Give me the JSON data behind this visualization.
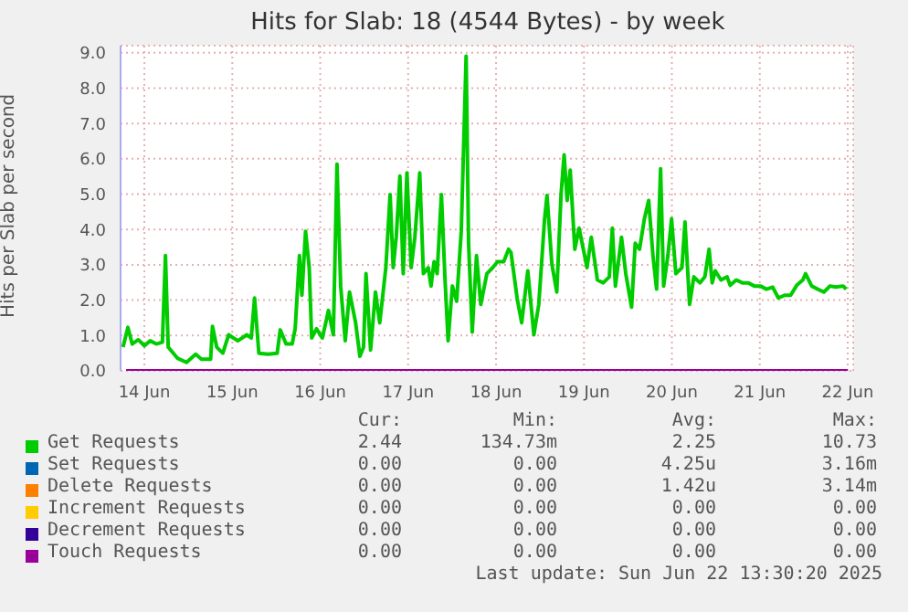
{
  "chart_data": {
    "type": "line",
    "title": "Hits for Slab: 18 (4544 Bytes) - by week",
    "ylabel": "Hits per Slab per second",
    "xlim": [
      "2025-06-14T05:30",
      "2025-06-22T13:30"
    ],
    "xticks": [
      {
        "value": "2025-06-14T12:00",
        "label": "14 Jun"
      },
      {
        "value": "2025-06-15T12:00",
        "label": "15 Jun"
      },
      {
        "value": "2025-06-16T12:00",
        "label": "16 Jun"
      },
      {
        "value": "2025-06-17T12:00",
        "label": "17 Jun"
      },
      {
        "value": "2025-06-18T12:00",
        "label": "18 Jun"
      },
      {
        "value": "2025-06-19T12:00",
        "label": "19 Jun"
      },
      {
        "value": "2025-06-20T12:00",
        "label": "20 Jun"
      },
      {
        "value": "2025-06-21T12:00",
        "label": "21 Jun"
      },
      {
        "value": "2025-06-22T12:00",
        "label": "22 Jun"
      }
    ],
    "ylim": [
      0,
      9.2
    ],
    "yticks": [
      {
        "value": 0,
        "label": "0.0"
      },
      {
        "value": 1,
        "label": "1.0"
      },
      {
        "value": 2,
        "label": "2.0"
      },
      {
        "value": 3,
        "label": "3.0"
      },
      {
        "value": 4,
        "label": "4.0"
      },
      {
        "value": 5,
        "label": "5.0"
      },
      {
        "value": 6,
        "label": "6.0"
      },
      {
        "value": 7,
        "label": "7.0"
      },
      {
        "value": 8,
        "label": "8.0"
      },
      {
        "value": 9,
        "label": "9.0"
      }
    ],
    "grid": true,
    "legend": "bottom",
    "marker": "none",
    "line_style": "solid",
    "series": [
      {
        "name": "Get Requests",
        "color": "#00cc00",
        "x": [
          "2025-06-14T06:10",
          "2025-06-14T07:30",
          "2025-06-14T08:40",
          "2025-06-14T10:20",
          "2025-06-14T12:00",
          "2025-06-14T13:35",
          "2025-06-14T15:15",
          "2025-06-14T16:55",
          "2025-06-14T17:45",
          "2025-06-14T18:30",
          "2025-06-14T21:00",
          "2025-06-14T23:30",
          "2025-06-15T02:00",
          "2025-06-15T03:35",
          "2025-06-15T06:05",
          "2025-06-15T06:35",
          "2025-06-15T07:45",
          "2025-06-15T09:25",
          "2025-06-15T11:00",
          "2025-06-15T13:30",
          "2025-06-15T16:00",
          "2025-06-15T17:10",
          "2025-06-15T18:05",
          "2025-06-15T19:15",
          "2025-06-15T21:45",
          "2025-06-16T00:15",
          "2025-06-16T01:05",
          "2025-06-16T02:40",
          "2025-06-16T04:20",
          "2025-06-16T05:10",
          "2025-06-16T06:20",
          "2025-06-16T07:00",
          "2025-06-16T08:00",
          "2025-06-16T09:00",
          "2025-06-16T09:40",
          "2025-06-16T11:00",
          "2025-06-16T12:35",
          "2025-06-16T14:15",
          "2025-06-16T15:35",
          "2025-06-16T16:35",
          "2025-06-16T17:35",
          "2025-06-16T18:50",
          "2025-06-16T20:00",
          "2025-06-16T21:40",
          "2025-06-16T22:50",
          "2025-06-16T23:50",
          "2025-06-17T00:30",
          "2025-06-17T01:45",
          "2025-06-17T03:05",
          "2025-06-17T04:15",
          "2025-06-17T05:55",
          "2025-06-17T07:05",
          "2025-06-17T07:55",
          "2025-06-17T08:45",
          "2025-06-17T09:45",
          "2025-06-17T10:40",
          "2025-06-17T11:40",
          "2025-06-17T12:50",
          "2025-06-17T13:50",
          "2025-06-17T15:10",
          "2025-06-17T16:10",
          "2025-06-17T17:30",
          "2025-06-17T18:15",
          "2025-06-17T19:05",
          "2025-06-17T19:55",
          "2025-06-17T21:05",
          "2025-06-17T22:05",
          "2025-06-17T22:55",
          "2025-06-18T00:05",
          "2025-06-18T01:15",
          "2025-06-18T02:30",
          "2025-06-18T03:50",
          "2025-06-18T04:30",
          "2025-06-18T05:30",
          "2025-06-18T06:40",
          "2025-06-18T07:50",
          "2025-06-18T09:30",
          "2025-06-18T11:05",
          "2025-06-18T12:25",
          "2025-06-18T14:05",
          "2025-06-18T15:25",
          "2025-06-18T16:05",
          "2025-06-18T17:45",
          "2025-06-18T19:00",
          "2025-06-18T20:40",
          "2025-06-18T22:20",
          "2025-06-18T23:40",
          "2025-06-19T01:15",
          "2025-06-19T01:55",
          "2025-06-19T03:15",
          "2025-06-19T04:35",
          "2025-06-19T05:45",
          "2025-06-19T06:35",
          "2025-06-19T07:25",
          "2025-06-19T08:15",
          "2025-06-19T09:30",
          "2025-06-19T10:40",
          "2025-06-19T11:50",
          "2025-06-19T12:50",
          "2025-06-19T14:00",
          "2025-06-19T15:40",
          "2025-06-19T17:15",
          "2025-06-19T18:55",
          "2025-06-19T19:45",
          "2025-06-19T20:35",
          "2025-06-19T22:15",
          "2025-06-19T23:25",
          "2025-06-20T01:00",
          "2025-06-20T02:00",
          "2025-06-20T03:10",
          "2025-06-20T04:30",
          "2025-06-20T05:40",
          "2025-06-20T06:50",
          "2025-06-20T07:50",
          "2025-06-20T08:55",
          "2025-06-20T09:45",
          "2025-06-20T10:55",
          "2025-06-20T11:55",
          "2025-06-20T13:05",
          "2025-06-20T14:45",
          "2025-06-20T15:35",
          "2025-06-20T16:50",
          "2025-06-20T18:00",
          "2025-06-20T19:40",
          "2025-06-20T21:00",
          "2025-06-20T22:10",
          "2025-06-20T23:00",
          "2025-06-20T23:50",
          "2025-06-21T01:25",
          "2025-06-21T03:05",
          "2025-06-21T03:55",
          "2025-06-21T05:35",
          "2025-06-21T07:15",
          "2025-06-21T08:50",
          "2025-06-21T10:30",
          "2025-06-21T12:10",
          "2025-06-21T13:50",
          "2025-06-21T15:30",
          "2025-06-21T17:05",
          "2025-06-21T18:45",
          "2025-06-21T20:25",
          "2025-06-21T22:05",
          "2025-06-21T23:45",
          "2025-06-22T00:30",
          "2025-06-22T02:10",
          "2025-06-22T03:50",
          "2025-06-22T05:30",
          "2025-06-22T07:10",
          "2025-06-22T08:45",
          "2025-06-22T10:45",
          "2025-06-22T11:35"
        ],
        "values": [
          0.67,
          1.23,
          0.76,
          0.88,
          0.71,
          0.85,
          0.76,
          0.81,
          3.26,
          0.67,
          0.36,
          0.24,
          0.47,
          0.33,
          0.33,
          1.26,
          0.67,
          0.5,
          1.02,
          0.85,
          1.02,
          0.93,
          2.06,
          0.5,
          0.47,
          0.5,
          1.16,
          0.76,
          0.76,
          1.19,
          3.26,
          2.14,
          3.95,
          2.92,
          0.93,
          1.19,
          0.93,
          1.71,
          1.02,
          5.85,
          2.4,
          0.85,
          2.23,
          1.36,
          0.41,
          0.67,
          2.75,
          0.59,
          2.23,
          1.36,
          2.92,
          4.99,
          2.92,
          3.78,
          5.51,
          2.75,
          5.6,
          2.92,
          3.78,
          5.6,
          2.75,
          2.92,
          2.4,
          3.09,
          2.75,
          4.99,
          2.57,
          0.85,
          2.4,
          1.97,
          3.95,
          8.9,
          3.61,
          1.1,
          3.26,
          1.88,
          2.75,
          2.92,
          3.09,
          3.09,
          3.44,
          3.35,
          2.06,
          1.36,
          2.83,
          1.02,
          1.88,
          4.3,
          4.96,
          3.01,
          2.23,
          4.99,
          6.11,
          4.82,
          5.68,
          3.44,
          4.04,
          3.44,
          2.92,
          3.78,
          2.57,
          2.49,
          2.66,
          4.04,
          2.4,
          3.78,
          2.75,
          1.8,
          3.61,
          3.44,
          4.3,
          4.82,
          3.26,
          2.31,
          5.72,
          2.4,
          3.26,
          4.3,
          2.75,
          2.92,
          4.21,
          1.88,
          2.66,
          2.49,
          2.66,
          3.44,
          2.49,
          2.83,
          2.57,
          2.66,
          2.42,
          2.57,
          2.49,
          2.49,
          2.4,
          2.4,
          2.31,
          2.37,
          2.06,
          2.14,
          2.14,
          2.42,
          2.57,
          2.75,
          2.4,
          2.31,
          2.23,
          2.4,
          2.37,
          2.4,
          2.31
        ]
      },
      {
        "name": "Set Requests",
        "color": "#0066b3"
      },
      {
        "name": "Delete Requests",
        "color": "#ff8000"
      },
      {
        "name": "Increment Requests",
        "color": "#ffcc00"
      },
      {
        "name": "Decrement Requests",
        "color": "#330099"
      },
      {
        "name": "Touch Requests",
        "color": "#990099",
        "x": [
          "2025-06-14T07:00",
          "2025-06-22T12:00"
        ],
        "values": [
          0,
          0
        ]
      }
    ],
    "annotations": [
      "Cur:",
      "Min:",
      "Avg:",
      "Max:",
      "2.44",
      "134.73m",
      "2.25",
      "10.73",
      "0.00",
      "0.00",
      "4.25u",
      "3.16m",
      "0.00",
      "0.00",
      "1.42u",
      "3.14m",
      "0.00",
      "0.00",
      "0.00",
      "0.00",
      "0.00",
      "0.00",
      "0.00",
      "0.00",
      "0.00",
      "0.00",
      "0.00",
      "0.00",
      "Last update: Sun Jun 22 13:30:20 2025"
    ]
  }
}
